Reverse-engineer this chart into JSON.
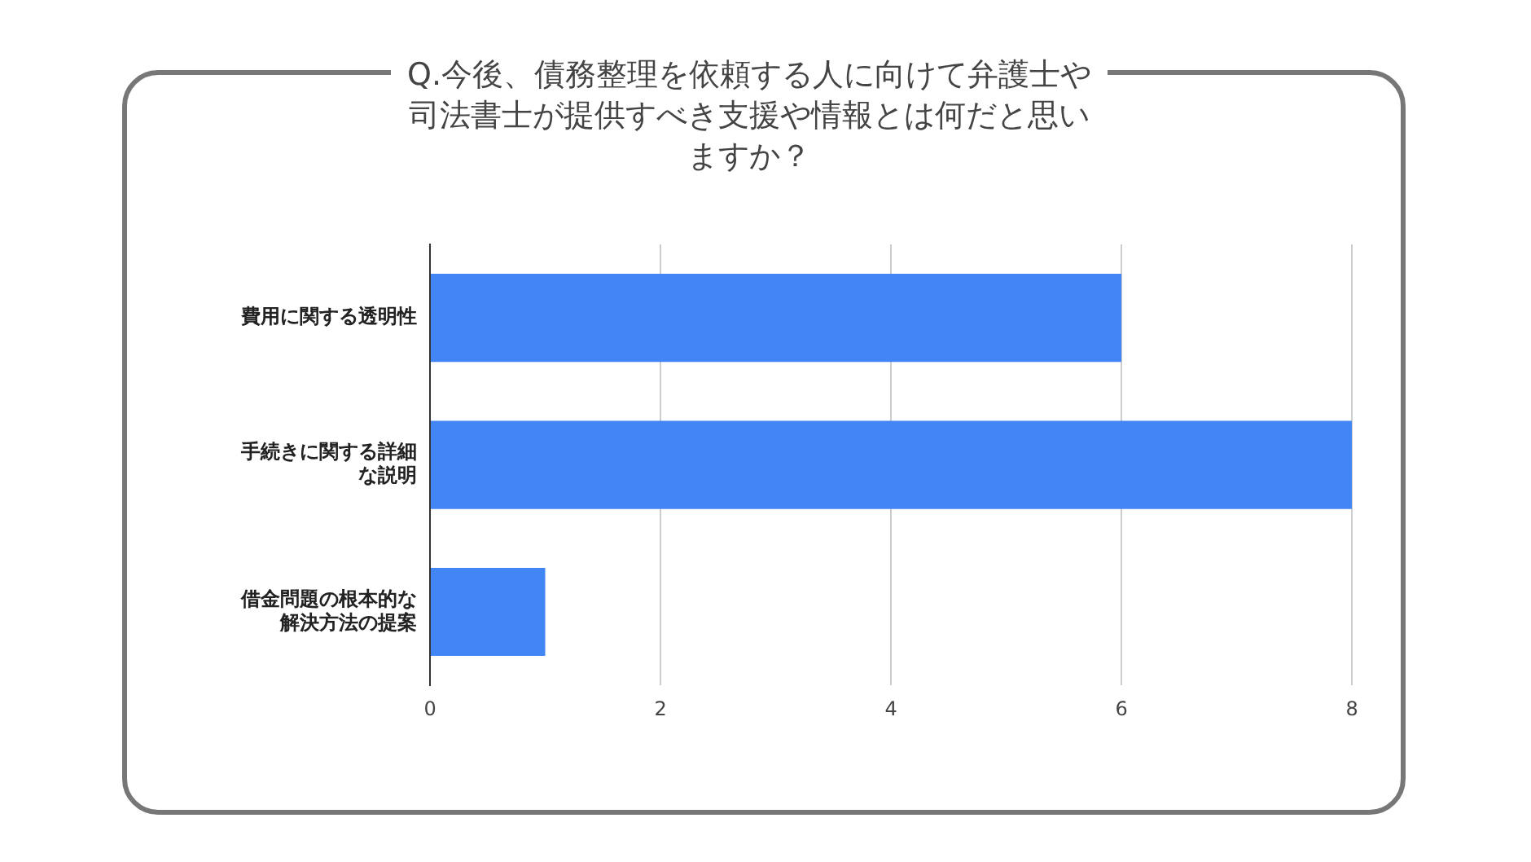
{
  "chart_data": {
    "type": "bar",
    "orientation": "horizontal",
    "title": "Q.今後、債務整理を依頼する人に向けて弁護士や司法書士が提供すべき支援や情報とは何だと思いますか？",
    "categories": [
      "費用に関する透明性",
      "手続きに関する詳細な説明",
      "借金問題の根本的な解決方法の提案"
    ],
    "values": [
      6,
      8,
      1
    ],
    "color": "#4285f4",
    "xlim": [
      0,
      8
    ],
    "xticks": [
      0,
      2,
      4,
      6,
      8
    ],
    "grid": "x"
  }
}
